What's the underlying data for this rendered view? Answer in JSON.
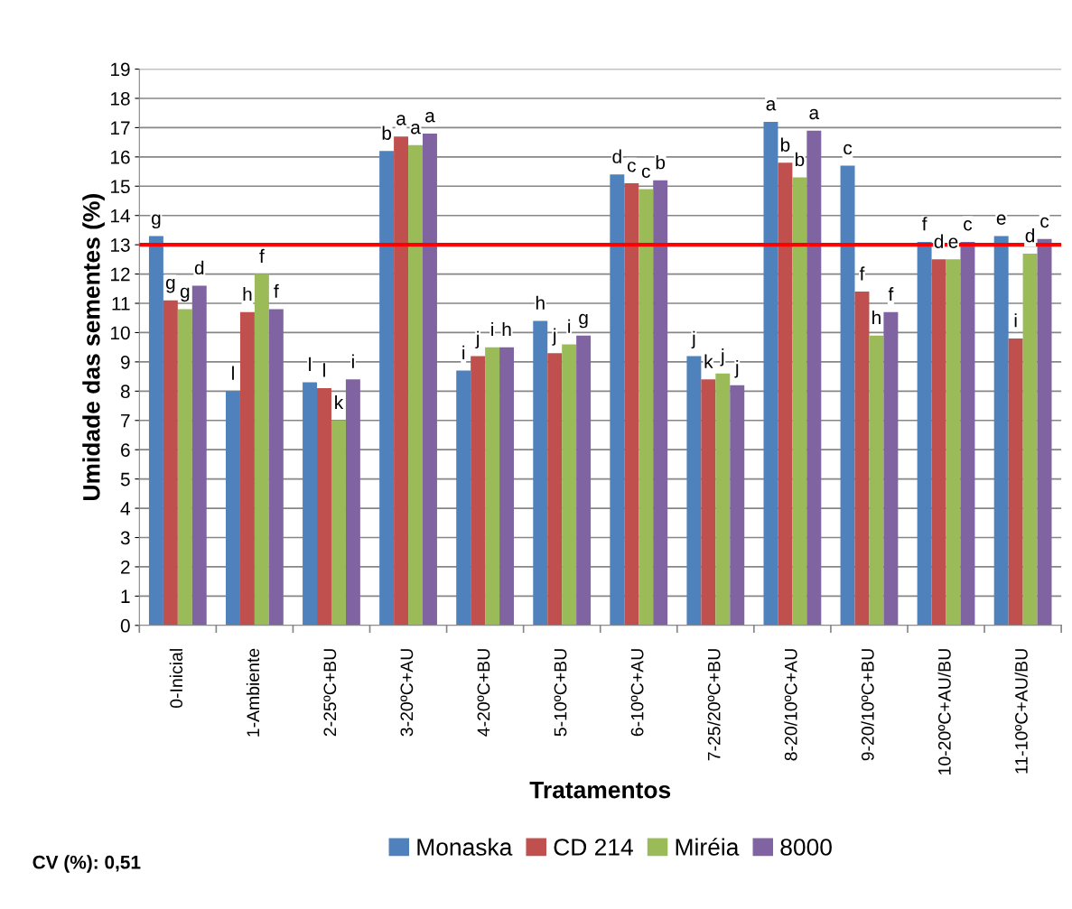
{
  "chart_data": {
    "type": "bar",
    "xlabel": "Tratamentos",
    "ylabel": "Umidade das sementes (%)",
    "categories": [
      "0-Inicial",
      "1-Ambiente",
      "2-25ºC+BU",
      "3-20ºC+AU",
      "4-20ºC+BU",
      "5-10ºC+BU",
      "6-10ºC+AU",
      "7-25/20ºC+BU",
      "8-20/10ºC+AU",
      "9-20/10ºC+BU",
      "10-20ºC+AU/BU",
      "11-10ºC+AU/BU"
    ],
    "series": [
      {
        "name": "Monaska",
        "color": "#4f81bd",
        "values": [
          13.3,
          8.0,
          8.3,
          16.2,
          8.7,
          10.4,
          15.4,
          9.2,
          17.2,
          15.7,
          13.1,
          13.3
        ],
        "value_labels": [
          "g",
          "l",
          "l",
          "b",
          "i",
          "h",
          "d",
          "j",
          "a",
          "c",
          "f",
          "e"
        ]
      },
      {
        "name": "CD 214",
        "color": "#c0504d",
        "values": [
          11.1,
          10.7,
          8.1,
          16.7,
          9.2,
          9.3,
          15.1,
          8.4,
          15.8,
          11.4,
          12.5,
          9.8
        ],
        "value_labels": [
          "g",
          "h",
          "l",
          "a",
          "j",
          "j",
          "c",
          "k",
          "b",
          "f",
          "d",
          "i"
        ]
      },
      {
        "name": "Miréia",
        "color": "#9bbb59",
        "values": [
          10.8,
          12.0,
          7.0,
          16.4,
          9.5,
          9.6,
          14.9,
          8.6,
          15.3,
          9.9,
          12.5,
          12.7
        ],
        "value_labels": [
          "g",
          "f",
          "k",
          "a",
          "i",
          "i",
          "c",
          "j",
          "b",
          "h",
          "e",
          "d"
        ]
      },
      {
        "name": "8000",
        "color": "#8064a2",
        "values": [
          11.6,
          10.8,
          8.4,
          16.8,
          9.5,
          9.9,
          15.2,
          8.2,
          16.9,
          10.7,
          13.1,
          13.2
        ],
        "value_labels": [
          "d",
          "f",
          "i",
          "a",
          "h",
          "g",
          "b",
          "j",
          "a",
          "f",
          "c",
          "c"
        ]
      }
    ],
    "ylim": [
      0,
      19
    ],
    "yticks": [
      0,
      1,
      2,
      3,
      4,
      5,
      6,
      7,
      8,
      9,
      10,
      11,
      12,
      13,
      14,
      15,
      16,
      17,
      18,
      19
    ],
    "grid": "y",
    "legend": "bottom",
    "ref_lines": [
      {
        "axis": "y",
        "value": 13,
        "color": "#ff0000",
        "line_style": "solid"
      }
    ],
    "annotations": [
      "CV (%): 0,51"
    ]
  }
}
